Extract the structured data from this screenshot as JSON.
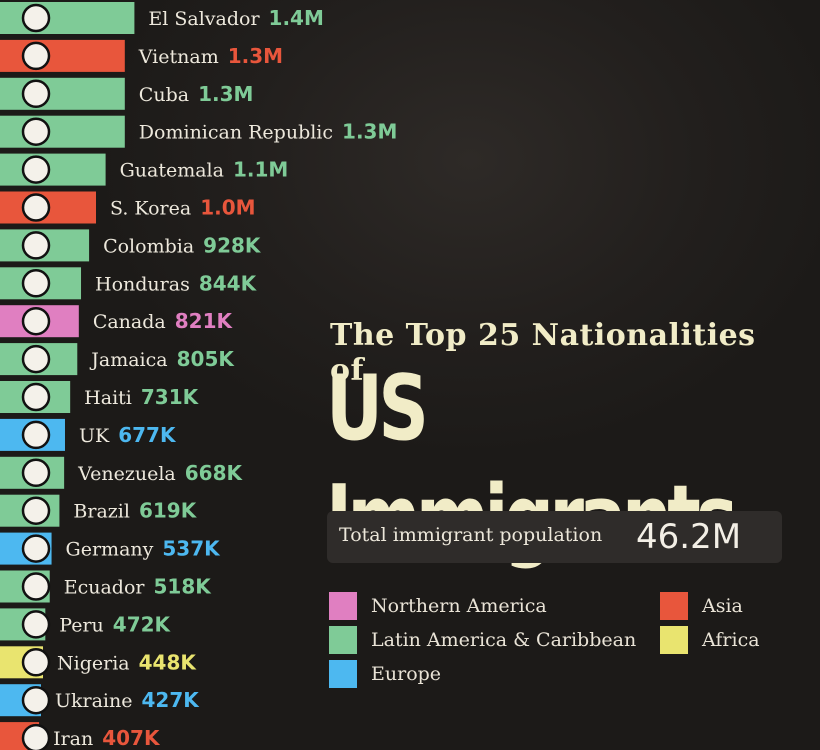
{
  "title_line1": "The Top 25 Nationalities of",
  "title_line2": "US Immigrants",
  "total": {
    "label": "Total immigrant population",
    "value": "46.2M"
  },
  "legend": [
    {
      "label": "Northern America",
      "color": "#e07fc1"
    },
    {
      "label": "Latin America & Caribbean",
      "color": "#7fcb97"
    },
    {
      "label": "Europe",
      "color": "#4db8f0"
    },
    {
      "label": "Asia",
      "color": "#e8563c"
    },
    {
      "label": "Africa",
      "color": "#e9e46f"
    }
  ],
  "chart_data": {
    "type": "bar",
    "orientation": "horizontal",
    "title": "The Top 25 Nationalities of US Immigrants",
    "categories": [
      "El Salvador",
      "Vietnam",
      "Cuba",
      "Dominican Republic",
      "Guatemala",
      "S. Korea",
      "Colombia",
      "Honduras",
      "Canada",
      "Jamaica",
      "Haiti",
      "UK",
      "Venezuela",
      "Brazil",
      "Germany",
      "Ecuador",
      "Peru",
      "Nigeria",
      "Ukraine",
      "Iran"
    ],
    "values": [
      1.4,
      1.3,
      1.3,
      1.3,
      1.1,
      1.0,
      0.928,
      0.844,
      0.821,
      0.805,
      0.731,
      0.677,
      0.668,
      0.619,
      0.537,
      0.518,
      0.472,
      0.448,
      0.427,
      0.407
    ],
    "value_labels": [
      "1.4M",
      "1.3M",
      "1.3M",
      "1.3M",
      "1.1M",
      "1.0M",
      "928K",
      "844K",
      "821K",
      "805K",
      "731K",
      "677K",
      "668K",
      "619K",
      "537K",
      "518K",
      "472K",
      "448K",
      "427K",
      "407K"
    ],
    "regions": [
      "Latin America & Caribbean",
      "Asia",
      "Latin America & Caribbean",
      "Latin America & Caribbean",
      "Latin America & Caribbean",
      "Asia",
      "Latin America & Caribbean",
      "Latin America & Caribbean",
      "Northern America",
      "Latin America & Caribbean",
      "Latin America & Caribbean",
      "Europe",
      "Latin America & Caribbean",
      "Latin America & Caribbean",
      "Europe",
      "Latin America & Caribbean",
      "Latin America & Caribbean",
      "Africa",
      "Europe",
      "Asia"
    ],
    "unit": "millions"
  }
}
